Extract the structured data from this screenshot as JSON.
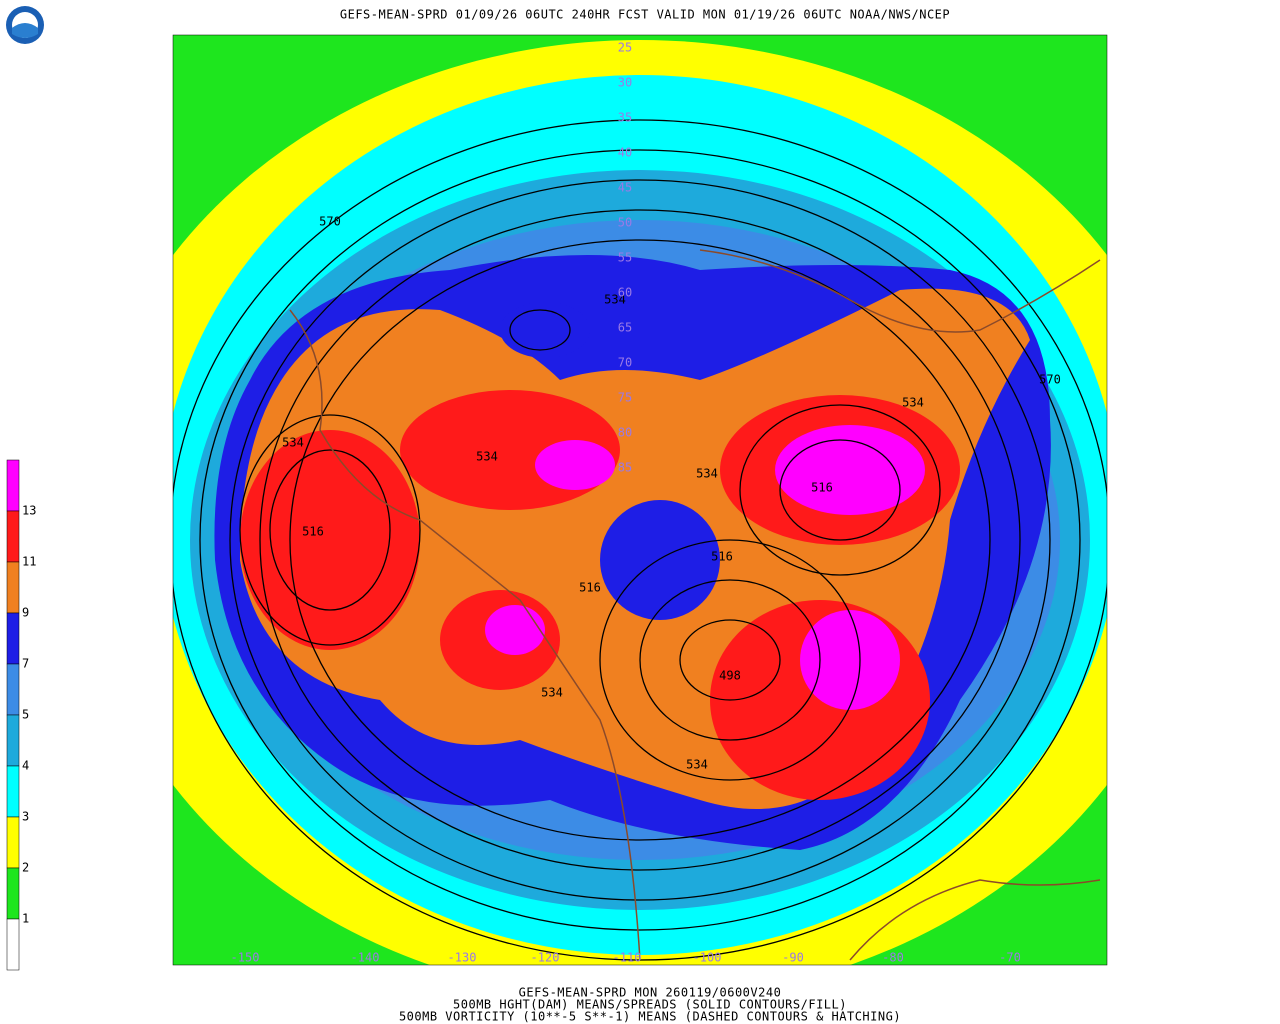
{
  "header": {
    "title": "GEFS-MEAN-SPRD 01/09/26 06UTC 240HR FCST VALID MON 01/19/26 06UTC NOAA/NWS/NCEP"
  },
  "footer": {
    "lines": [
      "GEFS-MEAN-SPRD MON 260119/0600V240",
      "500MB HGHT(DAM) MEANS/SPREADS (SOLID CONTOURS/FILL)",
      "500MB VORTICITY (10**-5 S**-1) MEANS (DASHED CONTOURS & HATCHING)"
    ]
  },
  "legend": {
    "labels": [
      13,
      11,
      9,
      7,
      5,
      4,
      3,
      2,
      1
    ],
    "colors": [
      "#ff00ff",
      "#ff1a1a",
      "#f08020",
      "#1e1ee6",
      "#3c8ce6",
      "#1eaadc",
      "#00ffff",
      "#ffff00",
      "#1ee61e",
      "#ffffff"
    ]
  },
  "map": {
    "contour_labels": [
      570,
      534,
      534,
      534,
      534,
      534,
      570,
      516,
      516,
      516,
      516,
      498,
      534,
      534
    ],
    "latitude_labels": [
      25,
      30,
      35,
      40,
      45,
      50,
      55,
      60,
      65,
      70,
      75,
      80,
      85
    ],
    "longitude_labels": [
      -150,
      -140,
      -130,
      -120,
      -110,
      -100,
      -90,
      -80,
      -70
    ]
  }
}
